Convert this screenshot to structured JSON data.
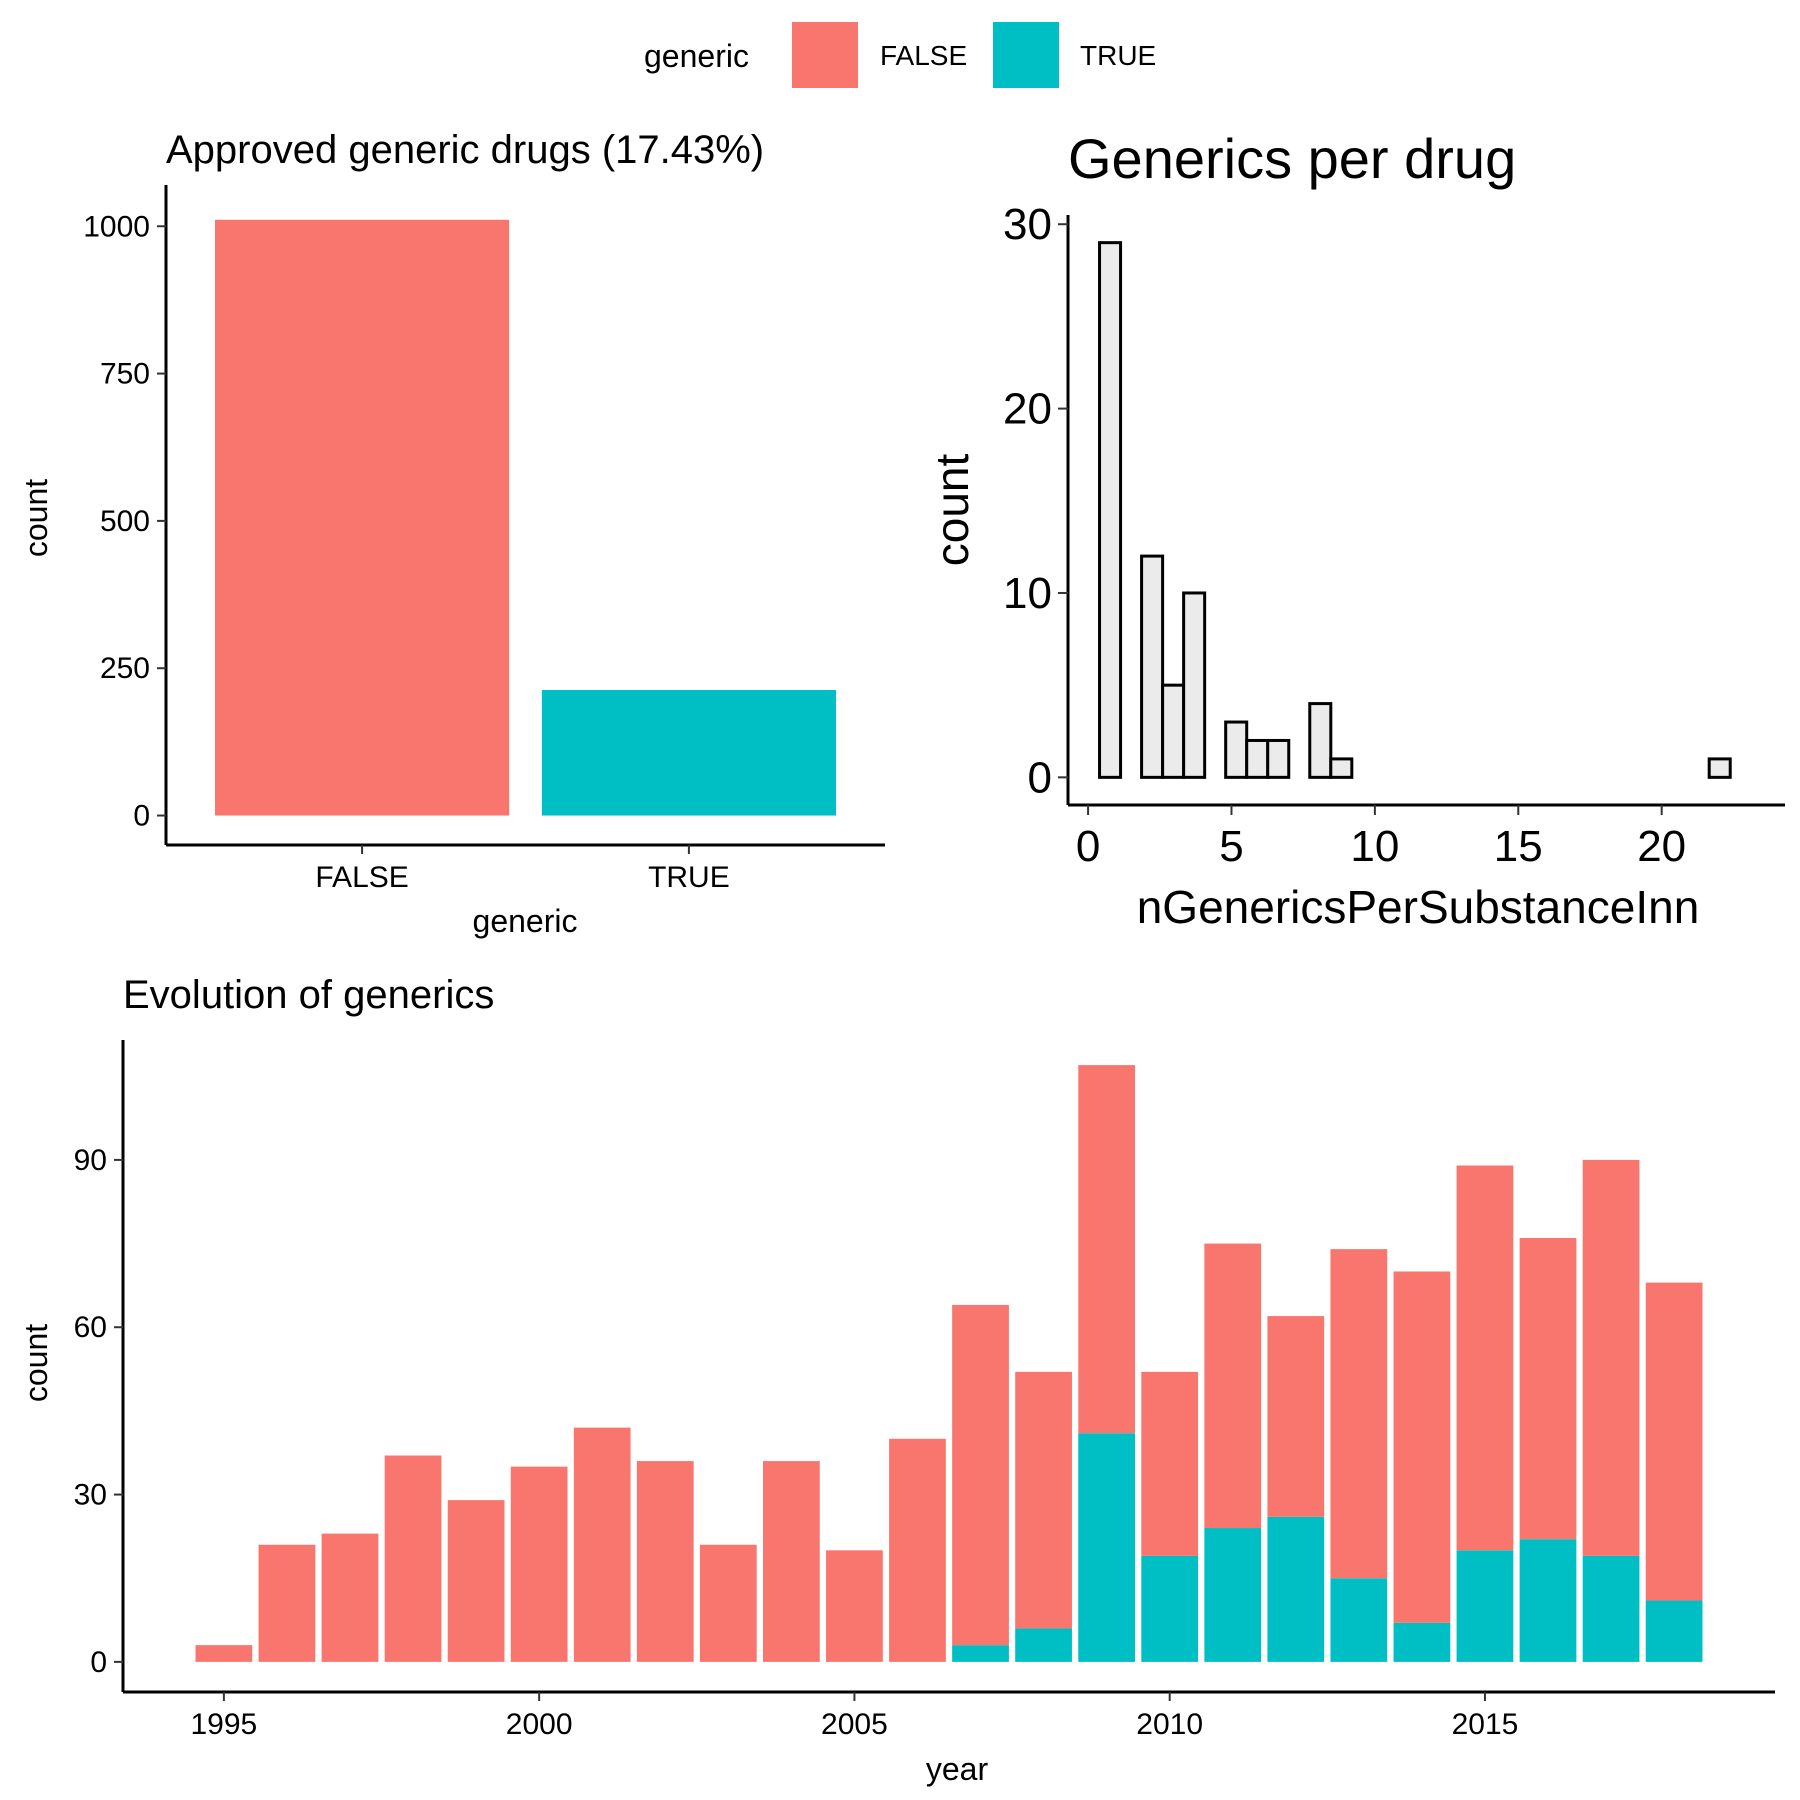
{
  "legend": {
    "title": "generic",
    "entries": [
      {
        "label": "FALSE",
        "color": "#F8766D"
      },
      {
        "label": "TRUE",
        "color": "#00BFC4"
      }
    ]
  },
  "chart_data": [
    {
      "id": "approved",
      "type": "bar",
      "title": "Approved generic drugs (17.43%)",
      "xlabel": "generic",
      "ylabel": "count",
      "categories": [
        "FALSE",
        "TRUE"
      ],
      "values": [
        1011,
        213
      ],
      "colors": [
        "#F8766D",
        "#00BFC4"
      ],
      "ylim": [
        -50,
        1070
      ],
      "yticks": [
        0,
        250,
        500,
        750,
        1000
      ],
      "grid": false
    },
    {
      "id": "per_drug",
      "type": "bar",
      "subtype": "histogram",
      "title": "Generics per drug",
      "xlabel": "nGenericsPerSubstanceInn",
      "ylabel": "count",
      "bin_width": 0.733,
      "bins_start": 0.4,
      "counts": [
        29,
        0,
        12,
        5,
        10,
        0,
        3,
        2,
        2,
        0,
        4,
        1,
        0,
        0,
        0,
        0,
        0,
        0,
        0,
        0,
        0,
        0,
        0,
        0,
        0,
        0,
        0,
        0,
        0,
        1
      ],
      "xlim": [
        -0.7,
        24.3
      ],
      "ylim": [
        -1.5,
        30.5
      ],
      "xticks": [
        0,
        5,
        10,
        15,
        20
      ],
      "yticks": [
        0,
        10,
        20,
        30
      ],
      "fill": "#EBEBEB",
      "stroke": "#000000",
      "grid": false
    },
    {
      "id": "evolution",
      "type": "bar",
      "subtype": "stacked",
      "title": "Evolution of generics",
      "xlabel": "year",
      "ylabel": "count",
      "x": [
        1995,
        1996,
        1997,
        1998,
        1999,
        2000,
        2001,
        2002,
        2003,
        2004,
        2005,
        2006,
        2007,
        2008,
        2009,
        2010,
        2011,
        2012,
        2013,
        2014,
        2015,
        2016,
        2017,
        2018
      ],
      "series": [
        {
          "name": "TRUE",
          "color": "#00BFC4",
          "values": [
            0,
            0,
            0,
            0,
            0,
            0,
            0,
            0,
            0,
            0,
            0,
            0,
            3,
            6,
            41,
            19,
            24,
            26,
            15,
            7,
            20,
            22,
            19,
            11
          ]
        },
        {
          "name": "FALSE",
          "color": "#F8766D",
          "values": [
            3,
            21,
            23,
            37,
            29,
            35,
            42,
            36,
            21,
            36,
            20,
            40,
            61,
            46,
            66,
            33,
            51,
            36,
            59,
            63,
            69,
            54,
            71,
            57
          ]
        }
      ],
      "xlim": [
        1993.4,
        2019.6
      ],
      "ylim": [
        -5.4,
        111.5
      ],
      "xticks": [
        1995,
        2000,
        2005,
        2010,
        2015
      ],
      "yticks": [
        0,
        30,
        60,
        90
      ],
      "grid": false
    }
  ]
}
